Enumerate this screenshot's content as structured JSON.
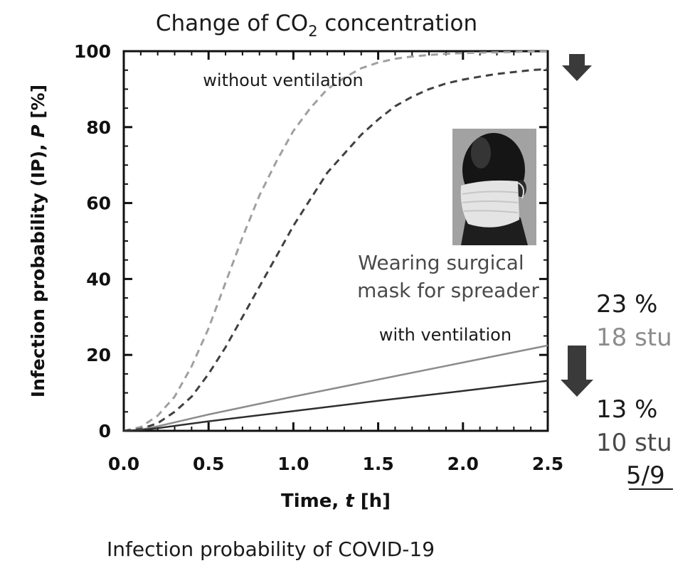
{
  "slide": {
    "title_main": "Change of CO",
    "title_sub": "2",
    "title_rest": " concentration",
    "caption": "Infection probability of COVID-19",
    "page_number": "5/9"
  },
  "annotations": {
    "without_ventilation": "without ventilation",
    "with_ventilation": "with ventilation",
    "mask_line1": "Wearing surgical",
    "mask_line2": "mask for spreader",
    "without_mask_pct": "23 %",
    "without_mask_stu": "18 stu",
    "with_mask_pct": "13 %",
    "with_mask_stu": "10 stu"
  },
  "colors": {
    "light_series": "#a0a0a0",
    "dark_series": "#404040",
    "text": "#1a1a1a",
    "gray_text": "#8c8c8c",
    "dark_gray_text": "#4a4a4a"
  },
  "chart_data": {
    "type": "line",
    "xlabel_main": "Time, ",
    "xlabel_var": "t",
    "xlabel_unit": " [h]",
    "ylabel_main": "Infection probability (IP), ",
    "ylabel_var": "P",
    "ylabel_unit": " [%]",
    "xlim": [
      0,
      2.5
    ],
    "ylim": [
      0,
      100
    ],
    "xticks": [
      0.0,
      0.5,
      1.0,
      1.5,
      2.0,
      2.5
    ],
    "xtick_labels": [
      "0.0",
      "0.5",
      "1.0",
      "1.5",
      "2.0",
      "2.5"
    ],
    "yticks": [
      0,
      20,
      40,
      60,
      80,
      100
    ],
    "ytick_labels": [
      "0",
      "20",
      "40",
      "60",
      "80",
      "100"
    ],
    "grid": false,
    "series": [
      {
        "style": "dashed",
        "color": "#a0a0a0",
        "x": [
          0.0,
          0.1,
          0.2,
          0.3,
          0.4,
          0.5,
          0.6,
          0.7,
          0.8,
          0.9,
          1.0,
          1.1,
          1.2,
          1.3,
          1.4,
          1.5,
          1.6,
          1.7,
          1.8,
          1.9,
          2.0,
          2.1,
          2.2,
          2.3,
          2.4,
          2.5
        ],
        "y": [
          0,
          1,
          4,
          9,
          17,
          27,
          39,
          51,
          62,
          71,
          79,
          85,
          90,
          93,
          95.5,
          97,
          98,
          98.6,
          99,
          99.3,
          99.5,
          99.6,
          99.7,
          99.8,
          99.9,
          99.9
        ]
      },
      {
        "style": "dashed",
        "color": "#404040",
        "x": [
          0.0,
          0.1,
          0.2,
          0.3,
          0.4,
          0.5,
          0.6,
          0.7,
          0.8,
          0.9,
          1.0,
          1.1,
          1.2,
          1.3,
          1.4,
          1.5,
          1.6,
          1.7,
          1.8,
          1.9,
          2.0,
          2.1,
          2.2,
          2.3,
          2.4,
          2.5
        ],
        "y": [
          0,
          0.5,
          2,
          5,
          9,
          15,
          22,
          30,
          38,
          46,
          54,
          61,
          68,
          73,
          78,
          82,
          85.5,
          88,
          90,
          91.5,
          92.5,
          93.3,
          94,
          94.5,
          95,
          95.3
        ]
      },
      {
        "style": "solid",
        "color": "#8c8c8c",
        "x": [
          0.0,
          0.1,
          0.2,
          0.5,
          1.0,
          1.5,
          2.0,
          2.5
        ],
        "y": [
          0,
          0.3,
          1.2,
          4.3,
          9,
          13.5,
          18,
          22.5
        ]
      },
      {
        "style": "solid",
        "color": "#2e2e2e",
        "x": [
          0.0,
          0.1,
          0.2,
          0.5,
          1.0,
          1.5,
          2.0,
          2.5
        ],
        "y": [
          0,
          0.2,
          0.7,
          2.5,
          5.2,
          7.9,
          10.5,
          13.2
        ]
      }
    ]
  }
}
